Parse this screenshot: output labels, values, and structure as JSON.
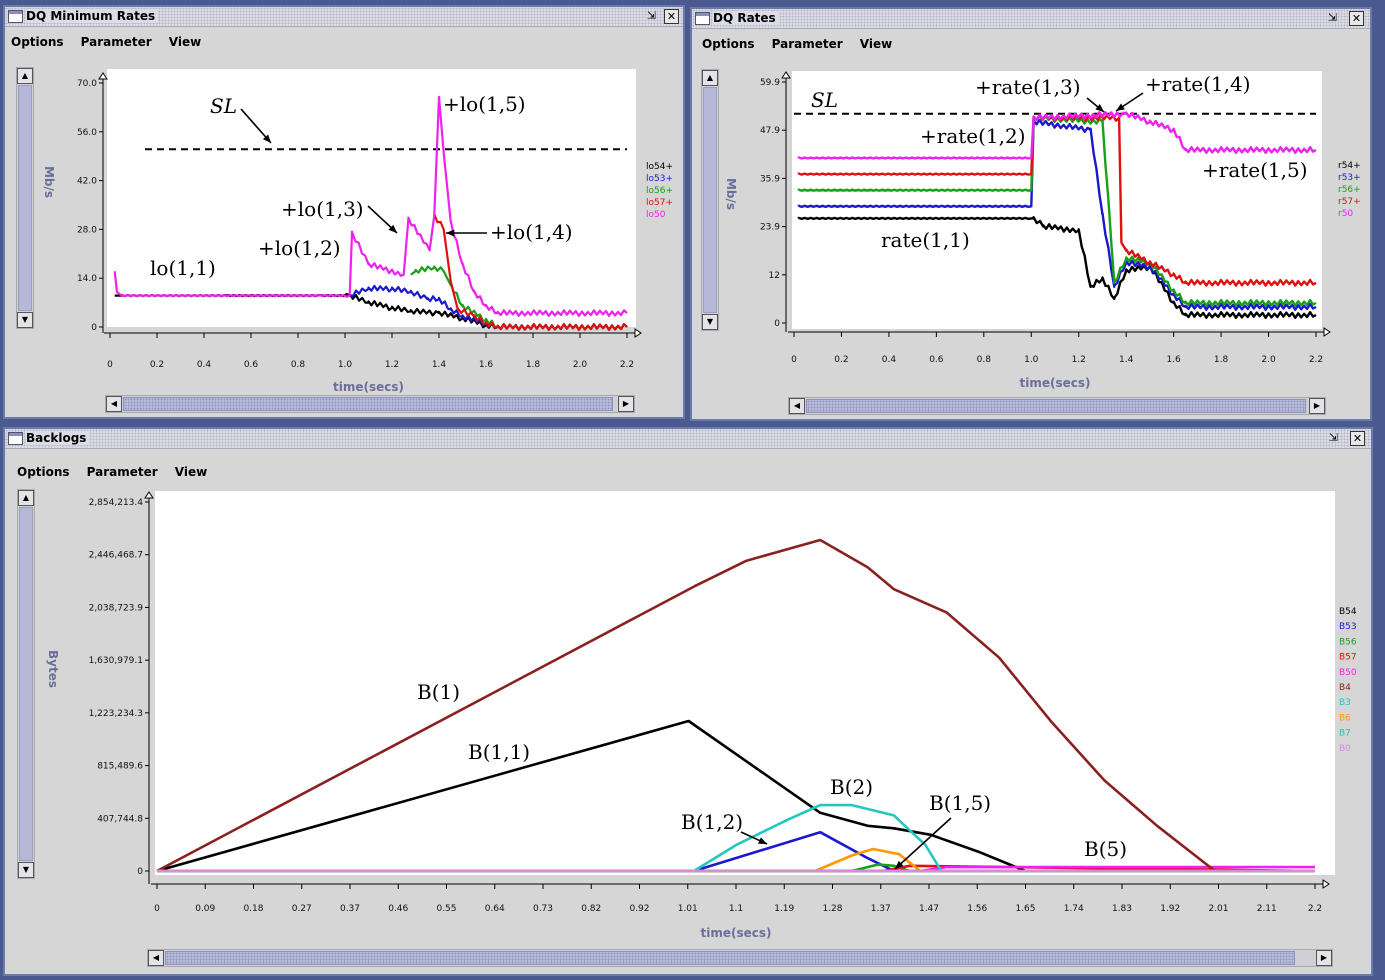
{
  "window_min": {
    "title": "DQ Minimum Rates",
    "menu": [
      "Options",
      "Parameter",
      "View"
    ],
    "ylabel": "Mb/s",
    "xlabel": "time(secs)",
    "yticks": [
      "70.0",
      "56.0",
      "42.0",
      "28.0",
      "14.0",
      "0"
    ],
    "xticks": [
      "0",
      "0.2",
      "0.4",
      "0.6",
      "0.8",
      "1.0",
      "1.2",
      "1.4",
      "1.6",
      "1.8",
      "2.0",
      "2.2"
    ],
    "legend": [
      "lo54+",
      "lo53+",
      "lo56+",
      "lo57+",
      "lo50"
    ],
    "annotations": {
      "sl": "SL",
      "a11": "lo(1,1)",
      "a12": "+lo(1,2)",
      "a13": "+lo(1,3)",
      "a14": "+lo(1,4)",
      "a15": "+lo(1,5)"
    }
  },
  "window_rates": {
    "title": "DQ Rates",
    "menu": [
      "Options",
      "Parameter",
      "View"
    ],
    "ylabel": "Mb/s",
    "xlabel": "time(secs)",
    "yticks": [
      "59.9",
      "47.9",
      "35.9",
      "23.9",
      "12",
      "0"
    ],
    "xticks": [
      "0",
      "0.2",
      "0.4",
      "0.6",
      "0.8",
      "1.0",
      "1.2",
      "1.4",
      "1.6",
      "1.8",
      "2.0",
      "2.2"
    ],
    "legend": [
      "r54+",
      "r53+",
      "r56+",
      "r57+",
      "r50"
    ],
    "annotations": {
      "sl": "SL",
      "a11": "rate(1,1)",
      "a12": "+rate(1,2)",
      "a13": "+rate(1,3)",
      "a14": "+rate(1,4)",
      "a15": "+rate(1,5)"
    }
  },
  "window_backlogs": {
    "title": "Backlogs",
    "menu": [
      "Options",
      "Parameter",
      "View"
    ],
    "ylabel": "Bytes",
    "xlabel": "time(secs)",
    "yticks": [
      "2,854,213.4",
      "2,446,468.7",
      "2,038,723.9",
      "1,630,979.1",
      "1,223,234.3",
      "815,489.6",
      "407,744.8",
      "0"
    ],
    "xticks": [
      "0",
      "0.09",
      "0.18",
      "0.27",
      "0.37",
      "0.46",
      "0.55",
      "0.64",
      "0.73",
      "0.82",
      "0.92",
      "1.01",
      "1.1",
      "1.19",
      "1.28",
      "1.37",
      "1.47",
      "1.56",
      "1.65",
      "1.74",
      "1.83",
      "1.92",
      "2.01",
      "2.11",
      "2.2"
    ],
    "legend": [
      "B54",
      "B53",
      "B56",
      "B57",
      "B50",
      "B4",
      "B3",
      "B6",
      "B7",
      "B0"
    ],
    "annotations": {
      "b1": "B(1)",
      "b11": "B(1,1)",
      "b2": "B(2)",
      "b12": "B(1,2)",
      "b15": "B(1,5)",
      "b5": "B(5)"
    }
  },
  "colors": {
    "c54": "#000000",
    "c53": "#1a1acc",
    "c56": "#18a018",
    "c57": "#e01010",
    "c50": "#ee22ee",
    "c4": "#8b2020",
    "c3": "#22c8c0",
    "c6": "#ff9900",
    "c7": "#22c8a0",
    "c0": "#dd88dd",
    "axis_label": "#6a6f9a"
  },
  "chart_data": [
    {
      "type": "line",
      "title": "DQ Minimum Rates",
      "xlabel": "time(secs)",
      "ylabel": "Mb/s",
      "xlim": [
        0,
        2.2
      ],
      "ylim": [
        0,
        70
      ],
      "threshold": {
        "label": "SL",
        "y": 51
      },
      "series": [
        {
          "name": "lo54+",
          "x": [
            0.02,
            0.05,
            0.5,
            0.9,
            1.02,
            1.1,
            1.2,
            1.28,
            1.4,
            1.5,
            1.6,
            1.65,
            2.2
          ],
          "y": [
            9,
            9,
            9,
            9,
            9,
            7,
            5.5,
            4.5,
            4,
            2.5,
            0.5,
            0,
            0
          ]
        },
        {
          "name": "lo53+",
          "x": [
            1.02,
            1.1,
            1.2,
            1.28,
            1.35,
            1.4,
            1.45,
            1.5,
            1.6,
            1.65,
            2.2
          ],
          "y": [
            9,
            11,
            11,
            10,
            8,
            8,
            5,
            3,
            1,
            0,
            0
          ]
        },
        {
          "name": "lo56+",
          "x": [
            1.28,
            1.3,
            1.38,
            1.42,
            1.45,
            1.5,
            1.6,
            1.65,
            2.2
          ],
          "y": [
            15,
            16,
            17,
            16,
            12,
            6,
            2,
            0,
            0
          ]
        },
        {
          "name": "lo57+",
          "x": [
            1.38,
            1.42,
            1.45,
            1.48,
            1.55,
            1.6,
            1.65,
            2.2
          ],
          "y": [
            32,
            28,
            13,
            5,
            3,
            1,
            0,
            0
          ]
        },
        {
          "name": "lo50",
          "x": [
            0.02,
            0.03,
            0.05,
            1.02,
            1.03,
            1.1,
            1.25,
            1.27,
            1.36,
            1.38,
            1.4,
            1.42,
            1.45,
            1.5,
            1.55,
            1.6,
            1.65,
            2.2
          ],
          "y": [
            16,
            10,
            9,
            9,
            27,
            18,
            15,
            31,
            22,
            32,
            66,
            50,
            30,
            18,
            10,
            6,
            4,
            4
          ]
        }
      ]
    },
    {
      "type": "line",
      "title": "DQ Rates",
      "xlabel": "time(secs)",
      "ylabel": "Mb/s",
      "xlim": [
        0,
        2.2
      ],
      "ylim": [
        0,
        59.9
      ],
      "threshold": {
        "label": "SL",
        "y": 52
      },
      "series": [
        {
          "name": "r54+",
          "x": [
            0.02,
            1.0,
            1.01,
            1.05,
            1.2,
            1.25,
            1.3,
            1.35,
            1.4,
            1.5,
            1.6,
            1.65,
            2.2
          ],
          "y": [
            26,
            26,
            26,
            24,
            23,
            9,
            11,
            6,
            13,
            14,
            5,
            2,
            2
          ]
        },
        {
          "name": "r53+",
          "x": [
            0.02,
            1.0,
            1.01,
            1.25,
            1.3,
            1.35,
            1.4,
            1.5,
            1.6,
            1.65,
            2.2
          ],
          "y": [
            29,
            29,
            50,
            48,
            27,
            9,
            15,
            14,
            7,
            4,
            4
          ]
        },
        {
          "name": "r56+",
          "x": [
            0.02,
            1.0,
            1.01,
            1.3,
            1.35,
            1.4,
            1.5,
            1.6,
            1.65,
            2.2
          ],
          "y": [
            33,
            33,
            51,
            50,
            10,
            16,
            15,
            8,
            5,
            5
          ]
        },
        {
          "name": "r57+",
          "x": [
            0.02,
            1.0,
            1.01,
            1.37,
            1.38,
            1.4,
            1.5,
            1.6,
            1.65,
            2.2
          ],
          "y": [
            37,
            37,
            51,
            51,
            20,
            18,
            15,
            12,
            10,
            10
          ]
        },
        {
          "name": "r50",
          "x": [
            0.02,
            1.0,
            1.01,
            1.4,
            1.5,
            1.6,
            1.65,
            2.2
          ],
          "y": [
            41,
            41,
            51,
            52,
            50,
            48,
            43,
            43
          ]
        }
      ]
    },
    {
      "type": "line",
      "title": "Backlogs",
      "xlabel": "time(secs)",
      "ylabel": "Bytes",
      "xlim": [
        0,
        2.2
      ],
      "ylim": [
        0,
        2854213.4
      ],
      "series": [
        {
          "name": "B54",
          "x": [
            0,
            1.01,
            1.26,
            1.35,
            1.4,
            1.47,
            1.56,
            1.62,
            1.65,
            2.2
          ],
          "y": [
            0,
            1160000,
            450000,
            350000,
            330000,
            280000,
            150000,
            50000,
            0,
            0
          ]
        },
        {
          "name": "B53",
          "x": [
            0,
            1.02,
            1.26,
            1.35,
            1.4,
            2.2
          ],
          "y": [
            0,
            0,
            300000,
            100000,
            0,
            0
          ]
        },
        {
          "name": "B56",
          "x": [
            0,
            1.32,
            1.37,
            1.4,
            1.43,
            2.2
          ],
          "y": [
            0,
            0,
            50000,
            40000,
            0,
            0
          ]
        },
        {
          "name": "B57",
          "x": [
            0,
            1.38,
            1.43,
            2.2
          ],
          "y": [
            0,
            0,
            40000,
            0
          ]
        },
        {
          "name": "B50",
          "x": [
            0,
            1.45,
            1.5,
            2.2
          ],
          "y": [
            0,
            0,
            30000,
            30000
          ]
        },
        {
          "name": "B4",
          "x": [
            0,
            1.02,
            1.12,
            1.26,
            1.35,
            1.4,
            1.5,
            1.6,
            1.7,
            1.8,
            1.9,
            2.01,
            2.2
          ],
          "y": [
            0,
            2200000,
            2400000,
            2560000,
            2350000,
            2180000,
            2000000,
            1650000,
            1150000,
            700000,
            350000,
            0,
            0
          ]
        },
        {
          "name": "B3",
          "x": [
            0,
            1.02,
            1.1,
            1.2,
            1.26,
            1.32,
            1.4,
            1.46,
            1.49,
            2.2
          ],
          "y": [
            0,
            0,
            200000,
            400000,
            510000,
            510000,
            430000,
            200000,
            0,
            0
          ]
        },
        {
          "name": "B6",
          "x": [
            0,
            1.25,
            1.32,
            1.36,
            1.41,
            1.45,
            2.2
          ],
          "y": [
            0,
            0,
            120000,
            170000,
            130000,
            0,
            0
          ]
        },
        {
          "name": "B7",
          "x": [
            0,
            1.5,
            2.2
          ],
          "y": [
            0,
            0,
            0
          ]
        },
        {
          "name": "B0",
          "x": [
            0,
            2.2
          ],
          "y": [
            0,
            0
          ]
        }
      ]
    }
  ]
}
